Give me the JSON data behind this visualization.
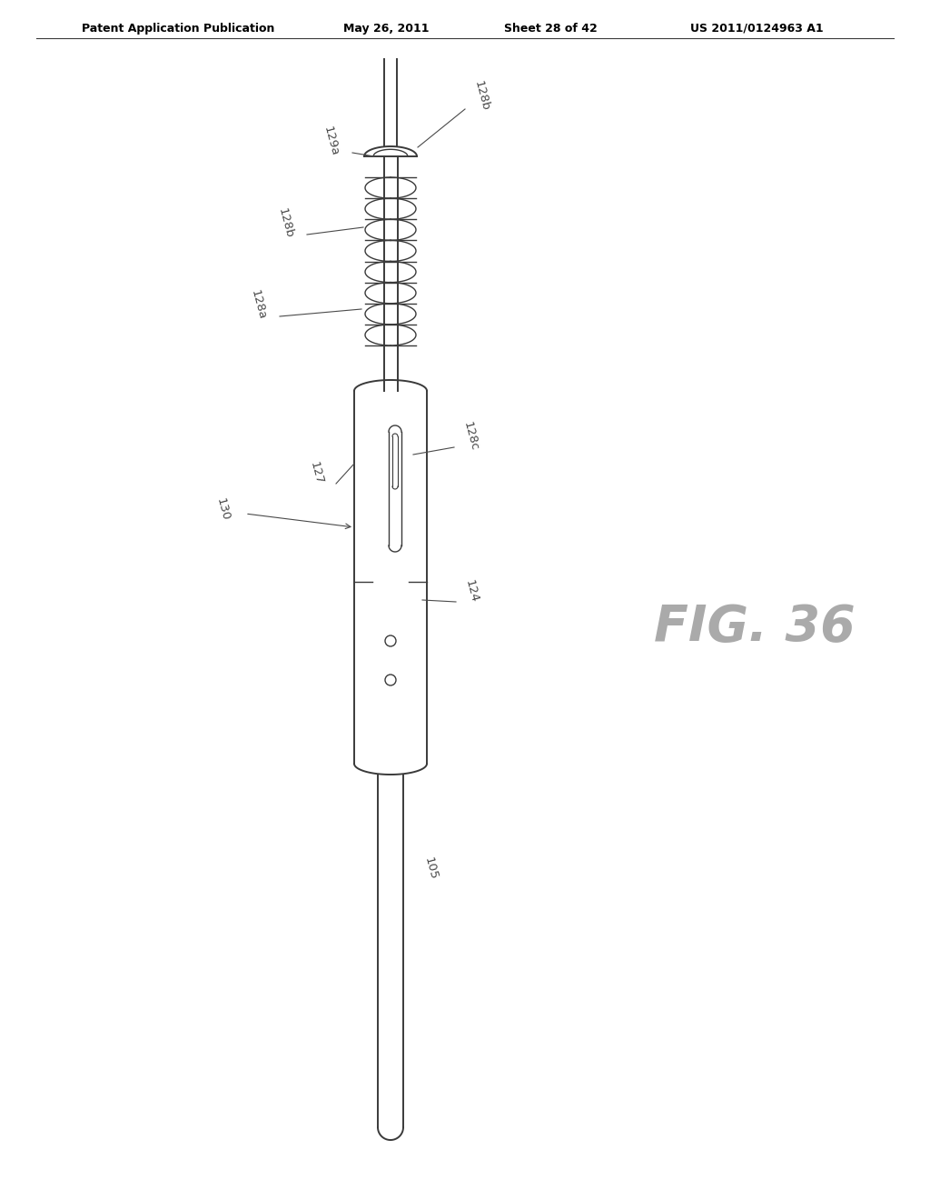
{
  "title": "Patent Application Publication",
  "date": "May 26, 2011",
  "sheet": "Sheet 28 of 42",
  "patent_num": "US 2011/0124963 A1",
  "fig_label": "FIG. 36",
  "bg_color": "#ffffff",
  "line_color": "#3a3a3a",
  "label_color": "#4a4a4a",
  "header_color": "#000000"
}
